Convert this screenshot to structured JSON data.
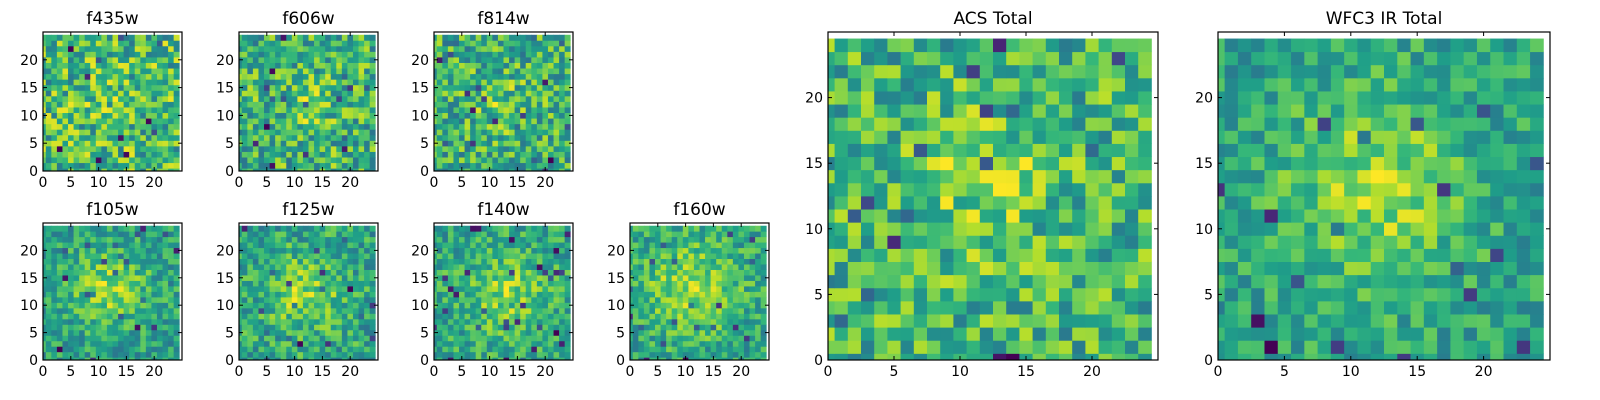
{
  "chart_data": [
    {
      "type": "heatmap",
      "title": "f435w",
      "xlim": [
        0,
        25
      ],
      "ylim": [
        0,
        25
      ],
      "xticks": [
        0,
        5,
        10,
        15,
        20
      ],
      "yticks": [
        0,
        5,
        10,
        15,
        20
      ],
      "x_tick_labels": [
        "0",
        "5",
        "10",
        "15",
        "20"
      ],
      "y_tick_labels": [
        "0",
        "5",
        "10",
        "15",
        "20"
      ],
      "grid_size": 25,
      "colormap": "viridis",
      "seed": 11,
      "noise": 0.95,
      "blob_strength": 0.15,
      "blob_center": [
        12,
        12
      ],
      "blob_sigma": 4,
      "block": 1
    },
    {
      "type": "heatmap",
      "title": "f606w",
      "xlim": [
        0,
        25
      ],
      "ylim": [
        0,
        25
      ],
      "xticks": [
        0,
        5,
        10,
        15,
        20
      ],
      "yticks": [
        0,
        5,
        10,
        15,
        20
      ],
      "x_tick_labels": [
        "0",
        "5",
        "10",
        "15",
        "20"
      ],
      "y_tick_labels": [
        "0",
        "5",
        "10",
        "15",
        "20"
      ],
      "grid_size": 25,
      "colormap": "viridis",
      "seed": 23,
      "noise": 0.9,
      "blob_strength": 0.3,
      "blob_center": [
        13,
        12
      ],
      "blob_sigma": 4,
      "block": 1
    },
    {
      "type": "heatmap",
      "title": "f814w",
      "xlim": [
        0,
        25
      ],
      "ylim": [
        0,
        25
      ],
      "xticks": [
        0,
        5,
        10,
        15,
        20
      ],
      "yticks": [
        0,
        5,
        10,
        15,
        20
      ],
      "x_tick_labels": [
        "0",
        "5",
        "10",
        "15",
        "20"
      ],
      "y_tick_labels": [
        "0",
        "5",
        "10",
        "15",
        "20"
      ],
      "grid_size": 25,
      "colormap": "viridis",
      "seed": 37,
      "noise": 0.9,
      "blob_strength": 0.35,
      "blob_center": [
        12,
        12
      ],
      "blob_sigma": 4,
      "block": 1
    },
    {
      "type": "heatmap",
      "title": "f105w",
      "xlim": [
        0,
        25
      ],
      "ylim": [
        0,
        25
      ],
      "xticks": [
        0,
        5,
        10,
        15,
        20
      ],
      "yticks": [
        0,
        5,
        10,
        15,
        20
      ],
      "x_tick_labels": [
        "0",
        "5",
        "10",
        "15",
        "20"
      ],
      "y_tick_labels": [
        "0",
        "5",
        "10",
        "15",
        "20"
      ],
      "grid_size": 25,
      "colormap": "viridis",
      "seed": 41,
      "noise": 0.55,
      "blob_strength": 0.7,
      "blob_center": [
        12,
        13
      ],
      "blob_sigma": 5,
      "block": 1
    },
    {
      "type": "heatmap",
      "title": "f125w",
      "xlim": [
        0,
        25
      ],
      "ylim": [
        0,
        25
      ],
      "xticks": [
        0,
        5,
        10,
        15,
        20
      ],
      "yticks": [
        0,
        5,
        10,
        15,
        20
      ],
      "x_tick_labels": [
        "0",
        "5",
        "10",
        "15",
        "20"
      ],
      "y_tick_labels": [
        "0",
        "5",
        "10",
        "15",
        "20"
      ],
      "grid_size": 25,
      "colormap": "viridis",
      "seed": 53,
      "noise": 0.6,
      "blob_strength": 0.6,
      "blob_center": [
        12,
        12
      ],
      "blob_sigma": 5,
      "block": 1
    },
    {
      "type": "heatmap",
      "title": "f140w",
      "xlim": [
        0,
        25
      ],
      "ylim": [
        0,
        25
      ],
      "xticks": [
        0,
        5,
        10,
        15,
        20
      ],
      "yticks": [
        0,
        5,
        10,
        15,
        20
      ],
      "x_tick_labels": [
        "0",
        "5",
        "10",
        "15",
        "20"
      ],
      "y_tick_labels": [
        "0",
        "5",
        "10",
        "15",
        "20"
      ],
      "grid_size": 25,
      "colormap": "viridis",
      "seed": 67,
      "noise": 0.6,
      "blob_strength": 0.6,
      "blob_center": [
        13,
        12
      ],
      "blob_sigma": 5,
      "block": 1
    },
    {
      "type": "heatmap",
      "title": "f160w",
      "xlim": [
        0,
        25
      ],
      "ylim": [
        0,
        25
      ],
      "xticks": [
        0,
        5,
        10,
        15,
        20
      ],
      "yticks": [
        0,
        5,
        10,
        15,
        20
      ],
      "x_tick_labels": [
        "0",
        "5",
        "10",
        "15",
        "20"
      ],
      "y_tick_labels": [
        "0",
        "5",
        "10",
        "15",
        "20"
      ],
      "grid_size": 25,
      "colormap": "viridis",
      "seed": 79,
      "noise": 0.55,
      "blob_strength": 0.7,
      "blob_center": [
        11,
        13
      ],
      "blob_sigma": 6,
      "block": 1
    },
    {
      "type": "heatmap",
      "title": "ACS Total",
      "xlim": [
        0,
        25
      ],
      "ylim": [
        0,
        25
      ],
      "xticks": [
        0,
        5,
        10,
        15,
        20
      ],
      "yticks": [
        0,
        5,
        10,
        15,
        20
      ],
      "x_tick_labels": [
        "0",
        "5",
        "10",
        "15",
        "20"
      ],
      "y_tick_labels": [
        "0",
        "5",
        "10",
        "15",
        "20"
      ],
      "grid_size": 25,
      "colormap": "viridis",
      "seed": 97,
      "noise": 0.8,
      "blob_strength": 0.45,
      "blob_center": [
        12,
        13
      ],
      "blob_sigma": 4,
      "block": 1
    },
    {
      "type": "heatmap",
      "title": "WFC3 IR Total",
      "xlim": [
        0,
        25
      ],
      "ylim": [
        0,
        25
      ],
      "xticks": [
        0,
        5,
        10,
        15,
        20
      ],
      "yticks": [
        0,
        5,
        10,
        15,
        20
      ],
      "x_tick_labels": [
        "0",
        "5",
        "10",
        "15",
        "20"
      ],
      "y_tick_labels": [
        "0",
        "5",
        "10",
        "15",
        "20"
      ],
      "grid_size": 25,
      "colormap": "viridis",
      "seed": 131,
      "noise": 0.55,
      "blob_strength": 0.75,
      "blob_center": [
        12,
        13
      ],
      "blob_sigma": 5,
      "block": 1
    }
  ]
}
